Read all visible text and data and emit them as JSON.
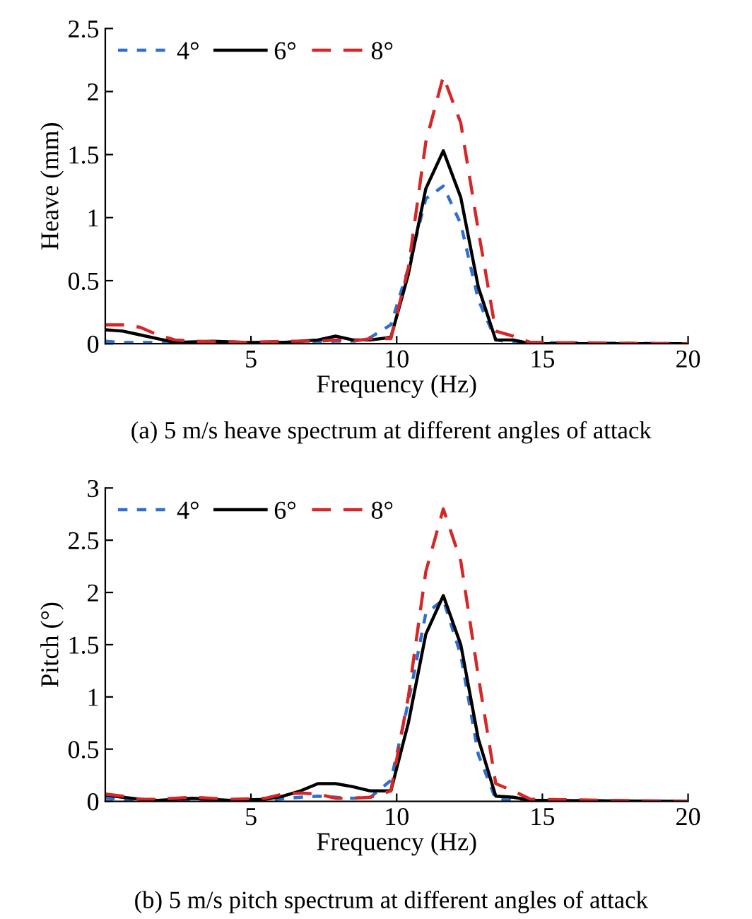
{
  "chart_data": [
    {
      "type": "line",
      "xlabel": "Frequency (Hz)",
      "ylabel": "Heave (mm)",
      "xlim": [
        0,
        20
      ],
      "xticks": [
        5,
        10,
        15,
        20
      ],
      "ylim": [
        0,
        2.5
      ],
      "yticks": [
        0,
        0.5,
        1,
        1.5,
        2,
        2.5
      ],
      "grid": false,
      "legend": "top left",
      "annotations": [
        "(a) 5 m/s heave spectrum at different angles of attack"
      ],
      "series": [
        {
          "name": "4°",
          "color": "#2f6fd0",
          "line_style": "dotted",
          "x": [
            0,
            0.6,
            1.2,
            2.4,
            4.9,
            7.3,
            7.9,
            8.5,
            9.1,
            9.8,
            10.4,
            11.0,
            11.6,
            12.2,
            12.8,
            13.4,
            14.0,
            20
          ],
          "values": [
            0.02,
            0.01,
            0.01,
            0.01,
            0.01,
            0.01,
            0.02,
            0.02,
            0.05,
            0.15,
            0.6,
            1.15,
            1.25,
            0.95,
            0.35,
            0.03,
            0.01,
            0.0
          ]
        },
        {
          "name": "6°",
          "color": "#000000",
          "line_style": "solid",
          "x": [
            0,
            0.6,
            1.2,
            1.8,
            2.4,
            3.7,
            4.9,
            6.1,
            7.3,
            7.9,
            8.5,
            9.1,
            9.8,
            10.4,
            11.0,
            11.6,
            12.2,
            12.8,
            13.4,
            14.0,
            14.6,
            20
          ],
          "values": [
            0.11,
            0.1,
            0.07,
            0.04,
            0.01,
            0.02,
            0.01,
            0.01,
            0.03,
            0.06,
            0.03,
            0.03,
            0.05,
            0.55,
            1.23,
            1.53,
            1.16,
            0.45,
            0.03,
            0.03,
            0.0,
            0.0
          ]
        },
        {
          "name": "8°",
          "color": "#d62728",
          "line_style": "dashed",
          "x": [
            0,
            0.6,
            1.2,
            1.8,
            2.4,
            3.0,
            4.9,
            6.1,
            7.3,
            7.9,
            8.5,
            9.1,
            9.8,
            10.4,
            11.0,
            11.6,
            12.2,
            12.8,
            13.4,
            14.0,
            14.6,
            20
          ],
          "values": [
            0.15,
            0.15,
            0.13,
            0.07,
            0.03,
            0.02,
            0.01,
            0.02,
            0.02,
            0.03,
            0.02,
            0.04,
            0.04,
            0.6,
            1.6,
            2.12,
            1.75,
            0.9,
            0.1,
            0.06,
            0.01,
            0.0
          ]
        }
      ]
    },
    {
      "type": "line",
      "xlabel": "Frequency (Hz)",
      "ylabel": "Pitch (°)",
      "xlim": [
        0,
        20
      ],
      "xticks": [
        5,
        10,
        15,
        20
      ],
      "ylim": [
        0,
        3
      ],
      "yticks": [
        0,
        0.5,
        1,
        1.5,
        2,
        2.5,
        3
      ],
      "grid": false,
      "legend": "top left",
      "annotations": [
        "(b) 5 m/s pitch spectrum at different angles of attack"
      ],
      "series": [
        {
          "name": "4°",
          "color": "#2f6fd0",
          "line_style": "dotted",
          "x": [
            0,
            0.6,
            1.8,
            4.3,
            5.5,
            6.7,
            7.3,
            7.9,
            8.5,
            9.1,
            9.8,
            10.4,
            11.0,
            11.6,
            12.2,
            12.8,
            13.4,
            14.0,
            20
          ],
          "values": [
            0.03,
            0.02,
            0.01,
            0.01,
            0.01,
            0.04,
            0.05,
            0.04,
            0.03,
            0.04,
            0.2,
            0.95,
            1.8,
            1.93,
            1.4,
            0.45,
            0.02,
            0.01,
            0.0
          ]
        },
        {
          "name": "6°",
          "color": "#000000",
          "line_style": "solid",
          "x": [
            0,
            0.6,
            1.2,
            1.8,
            3.0,
            4.3,
            5.5,
            6.1,
            6.7,
            7.3,
            7.9,
            8.5,
            9.1,
            9.8,
            10.4,
            11.0,
            11.6,
            12.2,
            12.8,
            13.4,
            14.0,
            14.6,
            20
          ],
          "values": [
            0.06,
            0.04,
            0.02,
            0.01,
            0.03,
            0.01,
            0.02,
            0.05,
            0.1,
            0.17,
            0.17,
            0.14,
            0.1,
            0.1,
            0.75,
            1.6,
            1.97,
            1.5,
            0.6,
            0.05,
            0.04,
            0.01,
            0.0
          ]
        },
        {
          "name": "8°",
          "color": "#d62728",
          "line_style": "dashed",
          "x": [
            0,
            0.6,
            1.2,
            1.8,
            3.0,
            4.3,
            5.5,
            6.1,
            6.7,
            7.3,
            7.9,
            8.5,
            9.1,
            9.8,
            10.4,
            11.0,
            11.6,
            12.2,
            12.8,
            13.4,
            14.0,
            14.6,
            20
          ],
          "values": [
            0.07,
            0.05,
            0.02,
            0.02,
            0.04,
            0.02,
            0.03,
            0.07,
            0.08,
            0.07,
            0.03,
            0.03,
            0.04,
            0.1,
            1.0,
            2.2,
            2.8,
            2.3,
            1.2,
            0.17,
            0.1,
            0.02,
            0.0
          ]
        }
      ]
    }
  ]
}
